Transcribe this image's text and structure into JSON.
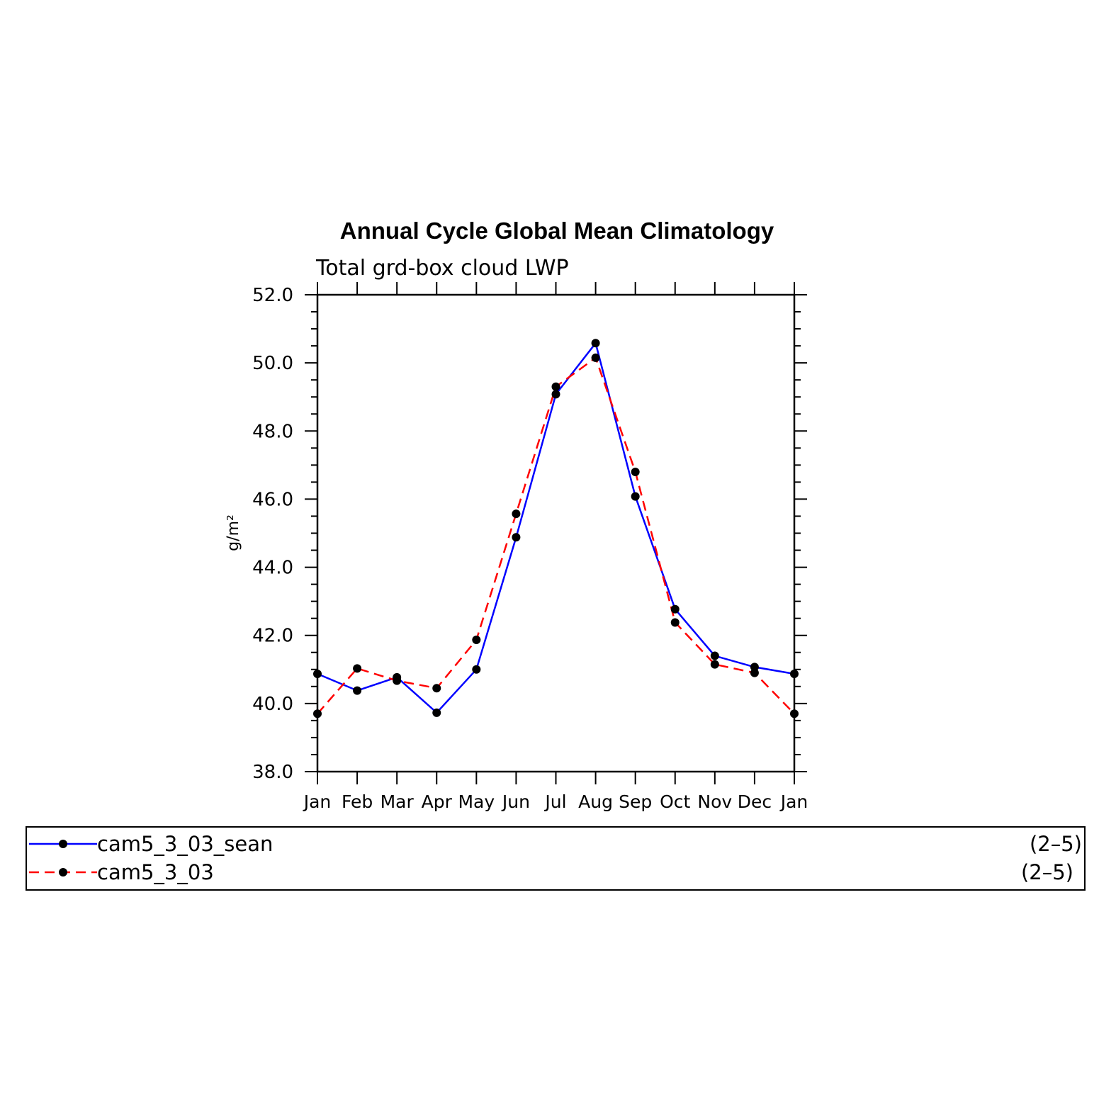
{
  "chart_data": {
    "type": "line",
    "title": "Annual Cycle Global Mean Climatology",
    "subtitle": "Total grd-box cloud LWP",
    "ylabel": "g/m²",
    "xlabel": "",
    "ylim": [
      38.0,
      52.0
    ],
    "yticks": [
      "38.0",
      "40.0",
      "42.0",
      "44.0",
      "46.0",
      "48.0",
      "50.0",
      "52.0"
    ],
    "categories": [
      "Jan",
      "Feb",
      "Mar",
      "Apr",
      "May",
      "Jun",
      "Jul",
      "Aug",
      "Sep",
      "Oct",
      "Nov",
      "Dec",
      "Jan"
    ],
    "series": [
      {
        "name": "cam5_3_03_sean",
        "range_label": "(2–5)",
        "color": "#0000ff",
        "dash": "solid",
        "values": [
          40.87,
          40.38,
          40.77,
          39.73,
          41.0,
          44.88,
          49.08,
          50.58,
          46.08,
          42.77,
          41.4,
          41.07,
          40.87
        ]
      },
      {
        "name": "cam5_3_03",
        "range_label": "(2–5)",
        "color": "#ff0000",
        "dash": "dashed",
        "values": [
          39.7,
          41.03,
          40.67,
          40.45,
          41.87,
          45.57,
          49.3,
          50.15,
          46.8,
          42.38,
          41.15,
          40.9,
          39.7
        ]
      }
    ],
    "grid": false,
    "legend_position": "bottom"
  }
}
